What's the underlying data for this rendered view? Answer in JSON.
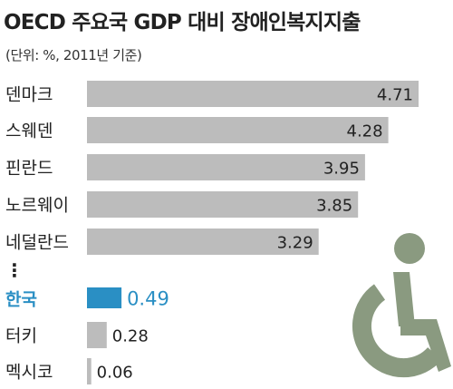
{
  "title": "OECD 주요국 GDP 대비 장애인복지지출",
  "subtitle": "(단위: %, 2011년 기준)",
  "ellipsis": "⋮",
  "colors": {
    "bar": "#bcbcbc",
    "highlight": "#2a8fc4",
    "text": "#222222",
    "icon": "#8a9a80"
  },
  "chart_data": {
    "type": "bar",
    "orientation": "horizontal",
    "title": "OECD 주요국 GDP 대비 장애인복지지출",
    "subtitle": "(단위: %, 2011년 기준)",
    "unit": "%",
    "categories": [
      "덴마크",
      "스웨덴",
      "핀란드",
      "노르웨이",
      "네덜란드",
      "한국",
      "터키",
      "멕시코"
    ],
    "values": [
      4.71,
      4.28,
      3.95,
      3.85,
      3.29,
      0.49,
      0.28,
      0.06
    ],
    "value_labels": [
      "4.71",
      "4.28",
      "3.95",
      "3.85",
      "3.29",
      "0.49",
      "0.28",
      "0.06"
    ],
    "highlight": "한국",
    "xlim": [
      0,
      4.71
    ],
    "grid": false,
    "legend": "none",
    "gap_after_index": 4,
    "decoration": "wheelchair-icon"
  }
}
